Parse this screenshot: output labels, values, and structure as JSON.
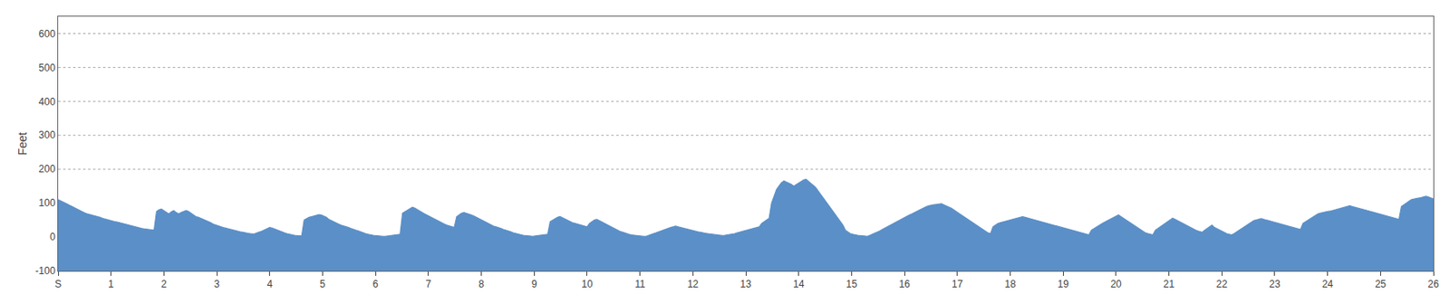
{
  "chart_data": {
    "type": "area",
    "ylabel": "Feet",
    "color": "#5b8fc7",
    "xlim": [
      0,
      26
    ],
    "xticks": [
      {
        "value": 0,
        "label": "S"
      },
      1,
      2,
      3,
      4,
      5,
      6,
      7,
      8,
      9,
      10,
      11,
      12,
      13,
      14,
      15,
      16,
      17,
      18,
      19,
      20,
      21,
      22,
      23,
      24,
      25,
      26
    ],
    "ylim": [
      -100,
      650
    ],
    "yticks": [
      -100,
      0,
      100,
      200,
      300,
      400,
      500,
      600
    ],
    "grid": [
      200,
      300,
      400,
      500,
      600
    ],
    "values": [
      110,
      107,
      104,
      100,
      96,
      92,
      88,
      85,
      82,
      78,
      74,
      70,
      68,
      66,
      65,
      63,
      60,
      58,
      55,
      53,
      50,
      48,
      47,
      45,
      44,
      42,
      40,
      38,
      36,
      34,
      32,
      30,
      28,
      26,
      25,
      24,
      23,
      22,
      21,
      20,
      75,
      80,
      82,
      78,
      72,
      68,
      74,
      78,
      72,
      68,
      72,
      76,
      78,
      75,
      70,
      65,
      60,
      58,
      55,
      52,
      48,
      45,
      42,
      38,
      35,
      32,
      30,
      28,
      26,
      24,
      22,
      20,
      18,
      16,
      15,
      14,
      12,
      11,
      10,
      9,
      10,
      12,
      15,
      18,
      22,
      25,
      28,
      26,
      23,
      20,
      18,
      15,
      12,
      10,
      8,
      6,
      5,
      4,
      3,
      3,
      50,
      55,
      58,
      60,
      62,
      64,
      66,
      65,
      62,
      58,
      52,
      48,
      44,
      40,
      38,
      35,
      33,
      30,
      28,
      25,
      22,
      20,
      18,
      15,
      12,
      10,
      8,
      6,
      5,
      4,
      3,
      2,
      2,
      2,
      3,
      4,
      5,
      6,
      7,
      8,
      70,
      75,
      80,
      85,
      88,
      85,
      80,
      76,
      72,
      68,
      64,
      60,
      56,
      52,
      48,
      45,
      42,
      38,
      35,
      32,
      30,
      28,
      60,
      65,
      70,
      72,
      70,
      68,
      65,
      62,
      58,
      54,
      50,
      46,
      42,
      38,
      35,
      32,
      30,
      28,
      25,
      22,
      20,
      18,
      15,
      12,
      10,
      8,
      6,
      5,
      4,
      3,
      2,
      2,
      3,
      4,
      5,
      6,
      7,
      8,
      45,
      50,
      55,
      58,
      60,
      56,
      52,
      48,
      44,
      42,
      40,
      38,
      36,
      34,
      32,
      30,
      40,
      45,
      50,
      52,
      48,
      44,
      40,
      36,
      32,
      28,
      24,
      20,
      18,
      15,
      12,
      10,
      8,
      6,
      5,
      4,
      3,
      2,
      2,
      2,
      5,
      8,
      10,
      12,
      15,
      18,
      20,
      22,
      25,
      28,
      30,
      32,
      30,
      28,
      26,
      24,
      22,
      20,
      18,
      16,
      15,
      14,
      12,
      11,
      10,
      9,
      8,
      7,
      6,
      5,
      4,
      5,
      6,
      7,
      8,
      10,
      12,
      14,
      16,
      18,
      20,
      22,
      24,
      26,
      28,
      30,
      40,
      45,
      50,
      55,
      100,
      120,
      140,
      150,
      160,
      165,
      162,
      158,
      155,
      150,
      155,
      160,
      165,
      168,
      170,
      165,
      158,
      152,
      145,
      135,
      125,
      115,
      105,
      95,
      85,
      75,
      65,
      55,
      45,
      35,
      20,
      15,
      10,
      8,
      6,
      5,
      4,
      3,
      2,
      2,
      5,
      8,
      12,
      15,
      18,
      22,
      26,
      30,
      34,
      38,
      42,
      46,
      50,
      54,
      58,
      62,
      65,
      68,
      72,
      76,
      80,
      84,
      88,
      90,
      92,
      94,
      95,
      96,
      97,
      98,
      95,
      92,
      88,
      85,
      80,
      75,
      70,
      65,
      60,
      55,
      50,
      45,
      40,
      35,
      30,
      25,
      20,
      15,
      12,
      10,
      30,
      35,
      40,
      42,
      44,
      46,
      48,
      50,
      52,
      54,
      56,
      58,
      60,
      58,
      56,
      54,
      52,
      50,
      48,
      46,
      44,
      42,
      40,
      38,
      36,
      34,
      32,
      30,
      28,
      26,
      24,
      22,
      20,
      18,
      16,
      14,
      12,
      10,
      8,
      6,
      20,
      25,
      30,
      34,
      38,
      42,
      46,
      50,
      54,
      58,
      62,
      65,
      60,
      55,
      50,
      45,
      40,
      35,
      30,
      25,
      20,
      15,
      12,
      10,
      8,
      6,
      20,
      25,
      30,
      35,
      40,
      45,
      50,
      55,
      52,
      48,
      44,
      40,
      36,
      32,
      28,
      24,
      20,
      18,
      16,
      14,
      20,
      25,
      30,
      35,
      28,
      24,
      20,
      16,
      12,
      10,
      8,
      6,
      10,
      15,
      20,
      25,
      30,
      35,
      40,
      45,
      48,
      50,
      52,
      54,
      52,
      50,
      48,
      46,
      44,
      42,
      40,
      38,
      36,
      34,
      32,
      30,
      28,
      26,
      24,
      22,
      40,
      45,
      50,
      55,
      60,
      64,
      68,
      70,
      72,
      74,
      75,
      76,
      78,
      80,
      82,
      84,
      86,
      88,
      90,
      92,
      90,
      88,
      86,
      84,
      82,
      80,
      78,
      76,
      74,
      72,
      70,
      68,
      66,
      64,
      62,
      60,
      58,
      56,
      54,
      52,
      90,
      95,
      100,
      105,
      110,
      112,
      114,
      115,
      116,
      118,
      120,
      118,
      115,
      112
    ]
  }
}
